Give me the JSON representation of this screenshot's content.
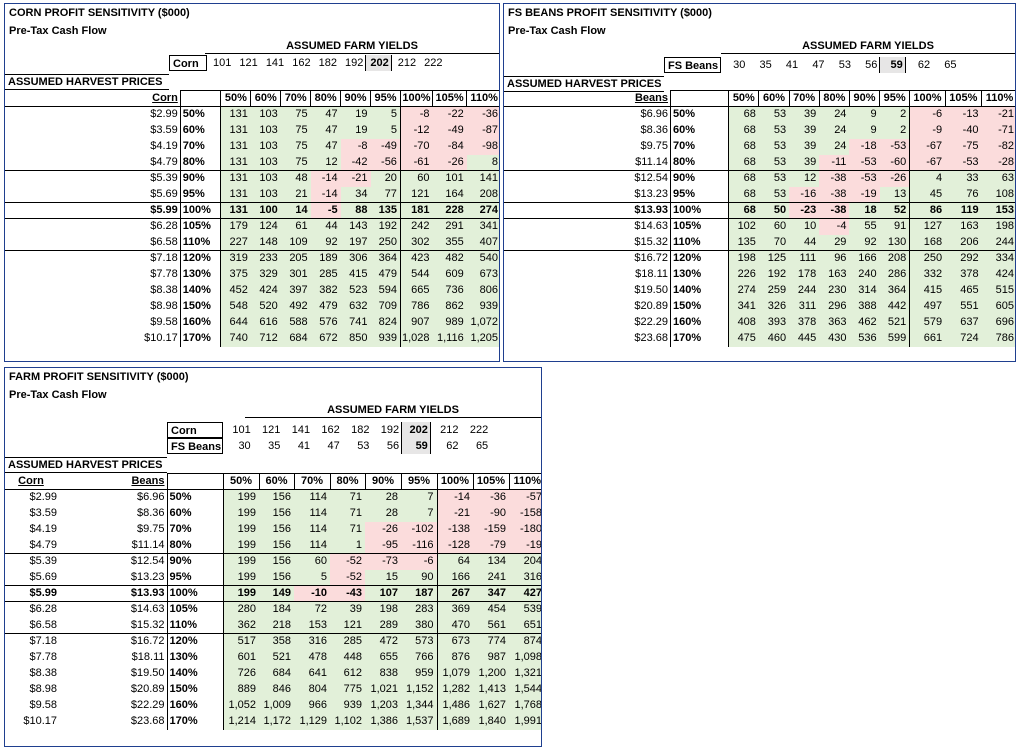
{
  "common": {
    "subtitle": "Pre-Tax Cash Flow",
    "assumed_yields": "ASSUMED FARM YIELDS",
    "assumed_prices": "ASSUMED HARVEST PRICES",
    "scenario_pcts": [
      "50%",
      "60%",
      "70%",
      "80%",
      "90%",
      "95%",
      "100%",
      "105%",
      "110%"
    ],
    "price_pcts": [
      "50%",
      "60%",
      "70%",
      "80%",
      "90%",
      "95%",
      "100%",
      "105%",
      "110%",
      "120%",
      "130%",
      "140%",
      "150%",
      "160%",
      "170%"
    ],
    "colors": {
      "positive": "#e2f0d9",
      "negative": "#fbdcdc",
      "border": "#1f3f8f"
    }
  },
  "corn": {
    "title": "CORN PROFIT SENSITIVITY ($000)",
    "yield_label": "Corn",
    "yields": [
      "101",
      "121",
      "141",
      "162",
      "182",
      "192",
      "202",
      "212",
      "222"
    ],
    "price_header": "Corn",
    "prices": [
      "$2.99",
      "$3.59",
      "$4.19",
      "$4.79",
      "$5.39",
      "$5.69",
      "$5.99",
      "$6.28",
      "$6.58",
      "$7.18",
      "$7.78",
      "$8.38",
      "$8.98",
      "$9.58",
      "$10.17"
    ],
    "rows": [
      [
        "131",
        "103",
        "75",
        "47",
        "19",
        "5",
        "-8",
        "-22",
        "-36"
      ],
      [
        "131",
        "103",
        "75",
        "47",
        "19",
        "5",
        "-12",
        "-49",
        "-87"
      ],
      [
        "131",
        "103",
        "75",
        "47",
        "-8",
        "-49",
        "-70",
        "-84",
        "-98"
      ],
      [
        "131",
        "103",
        "75",
        "12",
        "-42",
        "-56",
        "-61",
        "-26",
        "8"
      ],
      [
        "131",
        "103",
        "48",
        "-14",
        "-21",
        "20",
        "60",
        "101",
        "141"
      ],
      [
        "131",
        "103",
        "21",
        "-14",
        "34",
        "77",
        "121",
        "164",
        "208"
      ],
      [
        "131",
        "100",
        "14",
        "-5",
        "88",
        "135",
        "181",
        "228",
        "274"
      ],
      [
        "179",
        "124",
        "61",
        "44",
        "143",
        "192",
        "242",
        "291",
        "341"
      ],
      [
        "227",
        "148",
        "109",
        "92",
        "197",
        "250",
        "302",
        "355",
        "407"
      ],
      [
        "319",
        "233",
        "205",
        "189",
        "306",
        "364",
        "423",
        "482",
        "540"
      ],
      [
        "375",
        "329",
        "301",
        "285",
        "415",
        "479",
        "544",
        "609",
        "673"
      ],
      [
        "452",
        "424",
        "397",
        "382",
        "523",
        "594",
        "665",
        "736",
        "806"
      ],
      [
        "548",
        "520",
        "492",
        "479",
        "632",
        "709",
        "786",
        "862",
        "939"
      ],
      [
        "644",
        "616",
        "588",
        "576",
        "741",
        "824",
        "907",
        "989",
        "1,072"
      ],
      [
        "740",
        "712",
        "684",
        "672",
        "850",
        "939",
        "1,028",
        "1,116",
        "1,205"
      ]
    ]
  },
  "beans": {
    "title": "FS BEANS PROFIT SENSITIVITY ($000)",
    "yield_label": "FS Beans",
    "yields": [
      "30",
      "35",
      "41",
      "47",
      "53",
      "56",
      "59",
      "62",
      "65"
    ],
    "price_header": "Beans",
    "prices": [
      "$6.96",
      "$8.36",
      "$9.75",
      "$11.14",
      "$12.54",
      "$13.23",
      "$13.93",
      "$14.63",
      "$15.32",
      "$16.72",
      "$18.11",
      "$19.50",
      "$20.89",
      "$22.29",
      "$23.68"
    ],
    "rows": [
      [
        "68",
        "53",
        "39",
        "24",
        "9",
        "2",
        "-6",
        "-13",
        "-21"
      ],
      [
        "68",
        "53",
        "39",
        "24",
        "9",
        "2",
        "-9",
        "-40",
        "-71"
      ],
      [
        "68",
        "53",
        "39",
        "24",
        "-18",
        "-53",
        "-67",
        "-75",
        "-82"
      ],
      [
        "68",
        "53",
        "39",
        "-11",
        "-53",
        "-60",
        "-67",
        "-53",
        "-28"
      ],
      [
        "68",
        "53",
        "12",
        "-38",
        "-53",
        "-26",
        "4",
        "33",
        "63"
      ],
      [
        "68",
        "53",
        "-16",
        "-38",
        "-19",
        "13",
        "45",
        "76",
        "108"
      ],
      [
        "68",
        "50",
        "-23",
        "-38",
        "18",
        "52",
        "86",
        "119",
        "153"
      ],
      [
        "102",
        "60",
        "10",
        "-4",
        "55",
        "91",
        "127",
        "163",
        "198"
      ],
      [
        "135",
        "70",
        "44",
        "29",
        "92",
        "130",
        "168",
        "206",
        "244"
      ],
      [
        "198",
        "125",
        "111",
        "96",
        "166",
        "208",
        "250",
        "292",
        "334"
      ],
      [
        "226",
        "192",
        "178",
        "163",
        "240",
        "286",
        "332",
        "378",
        "424"
      ],
      [
        "274",
        "259",
        "244",
        "230",
        "314",
        "364",
        "415",
        "465",
        "515"
      ],
      [
        "341",
        "326",
        "311",
        "296",
        "388",
        "442",
        "497",
        "551",
        "605"
      ],
      [
        "408",
        "393",
        "378",
        "363",
        "462",
        "521",
        "579",
        "637",
        "696"
      ],
      [
        "475",
        "460",
        "445",
        "430",
        "536",
        "599",
        "661",
        "724",
        "786"
      ]
    ]
  },
  "farm": {
    "title": "FARM PROFIT SENSITIVITY ($000)",
    "corn_label": "Corn",
    "beans_label": "FS Beans",
    "corn_yields": [
      "101",
      "121",
      "141",
      "162",
      "182",
      "192",
      "202",
      "212",
      "222"
    ],
    "bean_yields": [
      "30",
      "35",
      "41",
      "47",
      "53",
      "56",
      "59",
      "62",
      "65"
    ],
    "corn_header": "Corn",
    "beans_header": "Beans",
    "corn_prices": [
      "$2.99",
      "$3.59",
      "$4.19",
      "$4.79",
      "$5.39",
      "$5.69",
      "$5.99",
      "$6.28",
      "$6.58",
      "$7.18",
      "$7.78",
      "$8.38",
      "$8.98",
      "$9.58",
      "$10.17"
    ],
    "bean_prices": [
      "$6.96",
      "$8.36",
      "$9.75",
      "$11.14",
      "$12.54",
      "$13.23",
      "$13.93",
      "$14.63",
      "$15.32",
      "$16.72",
      "$18.11",
      "$19.50",
      "$20.89",
      "$22.29",
      "$23.68"
    ],
    "rows": [
      [
        "199",
        "156",
        "114",
        "71",
        "28",
        "7",
        "-14",
        "-36",
        "-57"
      ],
      [
        "199",
        "156",
        "114",
        "71",
        "28",
        "7",
        "-21",
        "-90",
        "-158"
      ],
      [
        "199",
        "156",
        "114",
        "71",
        "-26",
        "-102",
        "-138",
        "-159",
        "-180"
      ],
      [
        "199",
        "156",
        "114",
        "1",
        "-95",
        "-116",
        "-128",
        "-79",
        "-19"
      ],
      [
        "199",
        "156",
        "60",
        "-52",
        "-73",
        "-6",
        "64",
        "134",
        "204"
      ],
      [
        "199",
        "156",
        "5",
        "-52",
        "15",
        "90",
        "166",
        "241",
        "316"
      ],
      [
        "199",
        "149",
        "-10",
        "-43",
        "107",
        "187",
        "267",
        "347",
        "427"
      ],
      [
        "280",
        "184",
        "72",
        "39",
        "198",
        "283",
        "369",
        "454",
        "539"
      ],
      [
        "362",
        "218",
        "153",
        "121",
        "289",
        "380",
        "470",
        "561",
        "651"
      ],
      [
        "517",
        "358",
        "316",
        "285",
        "472",
        "573",
        "673",
        "774",
        "874"
      ],
      [
        "601",
        "521",
        "478",
        "448",
        "655",
        "766",
        "876",
        "987",
        "1,098"
      ],
      [
        "726",
        "684",
        "641",
        "612",
        "838",
        "959",
        "1,079",
        "1,200",
        "1,321"
      ],
      [
        "889",
        "846",
        "804",
        "775",
        "1,021",
        "1,152",
        "1,282",
        "1,413",
        "1,544"
      ],
      [
        "1,052",
        "1,009",
        "966",
        "939",
        "1,203",
        "1,344",
        "1,486",
        "1,627",
        "1,768"
      ],
      [
        "1,214",
        "1,172",
        "1,129",
        "1,102",
        "1,386",
        "1,537",
        "1,689",
        "1,840",
        "1,991"
      ]
    ]
  }
}
